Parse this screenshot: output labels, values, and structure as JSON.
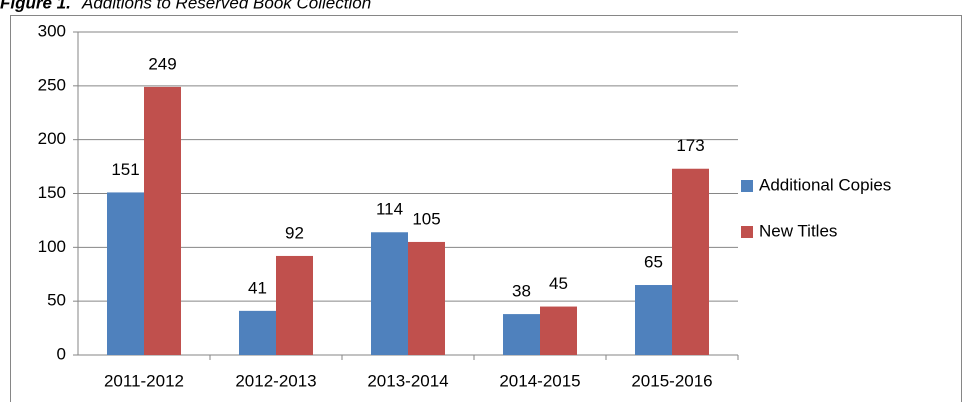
{
  "chart_data": {
    "type": "bar",
    "title_label": "Figure 1.",
    "title": "Additions to Reserved Book Collection",
    "categories": [
      "2011-2012",
      "2012-2013",
      "2013-2014",
      "2014-2015",
      "2015-2016"
    ],
    "series": [
      {
        "name": "Additional Copies",
        "color": "#4f81bd",
        "values": [
          151,
          41,
          114,
          38,
          65
        ]
      },
      {
        "name": "New Titles",
        "color": "#c0504d",
        "values": [
          249,
          92,
          105,
          45,
          173
        ]
      }
    ],
    "ylim": [
      0,
      300
    ],
    "yticks": [
      0,
      50,
      100,
      150,
      200,
      250,
      300
    ],
    "grid": true,
    "legend": "right"
  }
}
